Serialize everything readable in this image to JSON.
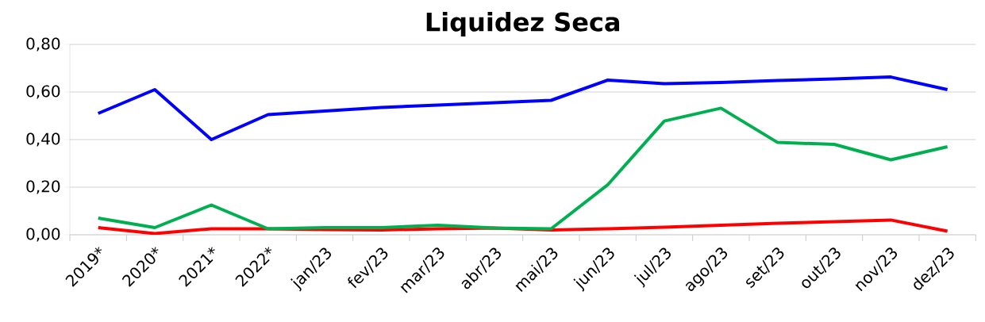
{
  "chart_data": {
    "type": "line",
    "title": "Liquidez Seca",
    "categories": [
      "2019*",
      "2020*",
      "2021*",
      "2022*",
      "jan/23",
      "fev/23",
      "mar/23",
      "abr/23",
      "mai/23",
      "jun/23",
      "jul/23",
      "ago/23",
      "set/23",
      "out/23",
      "nov/23",
      "dez/23"
    ],
    "series": [
      {
        "color": "#0000ff",
        "values": [
          0.51,
          0.61,
          0.4,
          0.505,
          0.52,
          0.535,
          0.545,
          0.555,
          0.565,
          0.65,
          0.635,
          0.64,
          0.648,
          0.655,
          0.663,
          0.61
        ]
      },
      {
        "color": "#ff0000",
        "values": [
          0.03,
          0.005,
          0.025,
          0.025,
          0.022,
          0.02,
          0.025,
          0.028,
          0.02,
          0.025,
          0.032,
          0.04,
          0.048,
          0.055,
          0.062,
          0.015
        ]
      },
      {
        "color": "#00b050",
        "values": [
          0.07,
          0.03,
          0.125,
          0.025,
          0.03,
          0.03,
          0.04,
          0.028,
          0.025,
          0.21,
          0.478,
          0.532,
          0.388,
          0.38,
          0.315,
          0.37
        ]
      }
    ],
    "ylim": [
      0,
      0.8
    ],
    "yticks": [
      {
        "value": 0,
        "label": "0,00"
      },
      {
        "value": 0.2,
        "label": "0,20"
      },
      {
        "value": 0.4,
        "label": "0,40"
      },
      {
        "value": 0.6,
        "label": "0,60"
      },
      {
        "value": 0.8,
        "label": "0,80"
      }
    ],
    "grid": "y",
    "marker": "none",
    "line_style": "solid"
  }
}
